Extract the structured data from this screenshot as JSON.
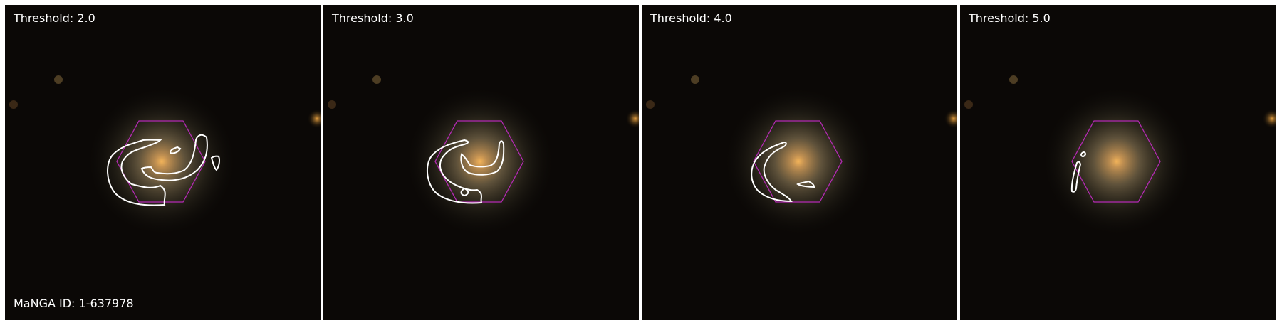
{
  "figure": {
    "manga_id_label": "MaNGA ID: 1-637978",
    "hexagon_color": "#b42ab4",
    "contour_color": "#ffffff",
    "panels": [
      {
        "threshold_label": "Threshold: 2.0"
      },
      {
        "threshold_label": "Threshold: 3.0"
      },
      {
        "threshold_label": "Threshold: 4.0"
      },
      {
        "threshold_label": "Threshold: 5.0"
      }
    ]
  }
}
